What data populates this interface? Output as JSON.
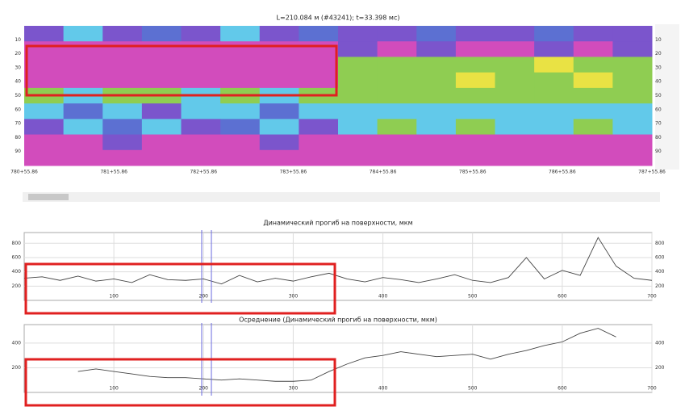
{
  "chart_data": [
    {
      "type": "heatmap",
      "title": "L=210.084 м (#43241); t=33.398 мс)",
      "xlabels": [
        "780+55.86",
        "781+55.86",
        "782+55.86",
        "783+55.86",
        "784+55.86",
        "785+55.86",
        "786+55.86",
        "787+55.86"
      ],
      "ylim": [
        0,
        100
      ],
      "yticks": [
        10,
        20,
        30,
        40,
        50,
        60,
        70,
        80,
        90
      ],
      "colors": [
        "#d24cbc",
        "#7b55cc",
        "#62c9ea",
        "#8fcd52",
        "#e9e244",
        "#5c70d2"
      ],
      "z": [
        [
          1,
          2,
          1,
          5,
          1,
          2,
          1,
          5,
          1,
          1,
          5,
          1,
          1,
          5,
          1,
          1
        ],
        [
          0,
          0,
          0,
          0,
          0,
          0,
          0,
          0,
          1,
          0,
          1,
          0,
          0,
          1,
          0,
          1
        ],
        [
          0,
          0,
          0,
          0,
          0,
          0,
          0,
          0,
          3,
          3,
          3,
          3,
          3,
          4,
          3,
          3
        ],
        [
          0,
          0,
          0,
          0,
          0,
          0,
          0,
          0,
          3,
          3,
          3,
          4,
          3,
          3,
          4,
          3
        ],
        [
          3,
          2,
          3,
          3,
          2,
          3,
          2,
          3,
          3,
          3,
          3,
          3,
          3,
          3,
          3,
          3
        ],
        [
          2,
          5,
          2,
          1,
          2,
          2,
          5,
          2,
          2,
          2,
          2,
          2,
          2,
          2,
          2,
          2
        ],
        [
          1,
          2,
          5,
          2,
          1,
          5,
          2,
          1,
          2,
          3,
          2,
          3,
          2,
          2,
          3,
          2
        ],
        [
          0,
          0,
          1,
          0,
          0,
          0,
          1,
          0,
          0,
          0,
          0,
          0,
          0,
          0,
          0,
          0
        ],
        [
          0,
          0,
          0,
          0,
          0,
          0,
          0,
          0,
          0,
          0,
          0,
          0,
          0,
          0,
          0,
          0
        ]
      ]
    },
    {
      "type": "line",
      "title": "Динамический прогиб на поверхности, мкм",
      "xlim": [
        0,
        700
      ],
      "xticks": [
        100,
        200,
        300,
        400,
        500,
        600,
        700
      ],
      "ylim": [
        0,
        950
      ],
      "yticks": [
        200,
        400,
        600,
        800
      ],
      "grid": true,
      "series": [
        {
          "color": "#444444",
          "x": [
            0,
            20,
            40,
            60,
            80,
            100,
            120,
            140,
            160,
            180,
            200,
            220,
            240,
            260,
            280,
            300,
            320,
            340,
            360,
            380,
            400,
            420,
            440,
            460,
            480,
            500,
            520,
            540,
            560,
            580,
            600,
            620,
            640,
            660,
            680,
            700
          ],
          "values": [
            310,
            330,
            280,
            340,
            270,
            300,
            250,
            360,
            290,
            280,
            300,
            230,
            350,
            260,
            310,
            270,
            330,
            380,
            300,
            260,
            320,
            290,
            250,
            300,
            360,
            280,
            250,
            320,
            600,
            300,
            420,
            350,
            880,
            480,
            310,
            280
          ]
        }
      ]
    },
    {
      "type": "line",
      "title": "Осреднение (Динамический прогиб на поверхности, мкм)",
      "xlim": [
        0,
        700
      ],
      "xticks": [
        100,
        200,
        300,
        400,
        500,
        600,
        700
      ],
      "ylim": [
        0,
        550
      ],
      "yticks": [
        200,
        400
      ],
      "grid": true,
      "series": [
        {
          "color": "#444444",
          "x": [
            60,
            80,
            100,
            120,
            140,
            160,
            180,
            200,
            220,
            240,
            260,
            280,
            300,
            320,
            340,
            360,
            380,
            400,
            420,
            440,
            460,
            480,
            500,
            520,
            540,
            560,
            580,
            600,
            620,
            640,
            660
          ],
          "values": [
            170,
            190,
            170,
            150,
            130,
            120,
            120,
            110,
            100,
            110,
            100,
            90,
            90,
            100,
            170,
            230,
            280,
            300,
            330,
            310,
            290,
            300,
            310,
            270,
            310,
            340,
            380,
            410,
            480,
            520,
            450
          ]
        }
      ]
    }
  ]
}
